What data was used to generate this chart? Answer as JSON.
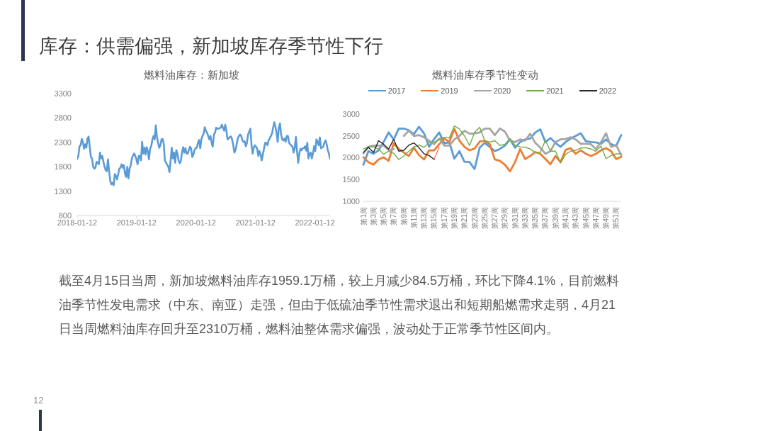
{
  "chart_data": [
    {
      "type": "other",
      "title": "库存：供需偏强，新加坡库存季节性下行",
      "annotations": [
        "截至4月15日当周，新加坡燃料油库存1959.1万桶，较上月减少84.5万桶，环比下降4.1%，目前燃料油季节性发电需求（中东、南亚）走强，但由于低硫油季节性需求退出和短期船燃需求走弱，4月21日当周燃料油库存回升至2310万桶，燃料油整体需求偏强，波动处于正常季节性区间内。",
        "12"
      ]
    },
    {
      "type": "line",
      "title": "燃料油库存：新加坡",
      "color": "#5b9bd5",
      "x": [
        "2018-01-12",
        "2018-01-19",
        "2018-01-26",
        "2018-02-02",
        "2018-02-09",
        "2018-02-16",
        "2018-02-23",
        "2018-03-02",
        "2018-03-09",
        "2018-03-16",
        "2018-03-23",
        "2018-03-30",
        "2018-04-06",
        "2018-04-13",
        "2018-04-20",
        "2018-04-27",
        "2018-05-04",
        "2018-05-11",
        "2018-05-18",
        "2018-05-25",
        "2018-06-01",
        "2018-06-08",
        "2018-06-15",
        "2018-06-22",
        "2018-06-29",
        "2018-07-06",
        "2018-07-13",
        "2018-07-20",
        "2018-07-27",
        "2018-08-03",
        "2018-08-10",
        "2018-08-17",
        "2018-08-24",
        "2018-08-31",
        "2018-09-07",
        "2018-09-14",
        "2018-09-28",
        "2018-10-05",
        "2018-10-12",
        "2018-10-19",
        "2018-10-26",
        "2018-11-02",
        "2018-11-09",
        "2018-11-16",
        "2018-11-23",
        "2018-11-30",
        "2018-12-07",
        "2018-12-14",
        "2018-12-21",
        "2018-12-28",
        "2019-01-04",
        "2019-01-11",
        "2019-01-18",
        "2019-01-25",
        "2019-02-01",
        "2019-02-08",
        "2019-02-15",
        "2019-02-22",
        "2019-03-01",
        "2019-03-08",
        "2019-03-15",
        "2019-03-22",
        "2019-03-29",
        "2019-04-05",
        "2019-04-12",
        "2019-04-19",
        "2019-04-26",
        "2019-05-03",
        "2019-05-10",
        "2019-05-17",
        "2019-05-24",
        "2019-05-31",
        "2019-06-07",
        "2019-06-14",
        "2019-06-21",
        "2019-06-28",
        "2019-07-05",
        "2019-07-12",
        "2019-07-26",
        "2019-08-02",
        "2019-08-09",
        "2019-08-16",
        "2019-08-23",
        "2019-08-30",
        "2019-09-06",
        "2019-09-13",
        "2019-09-20",
        "2019-09-27",
        "2019-10-04",
        "2019-10-11",
        "2019-10-18",
        "2019-10-25",
        "2019-11-01",
        "2019-11-08",
        "2019-11-15",
        "2019-11-22",
        "2019-11-29",
        "2019-12-06",
        "2019-12-13",
        "2019-12-20",
        "2019-12-27",
        "2020-01-03",
        "2020-01-10",
        "2020-01-17",
        "2020-01-24",
        "2020-01-31",
        "2020-02-07",
        "2020-02-14",
        "2020-02-21",
        "2020-02-28",
        "2020-03-06",
        "2020-03-13",
        "2020-03-20",
        "2020-03-27",
        "2020-04-03",
        "2020-04-10",
        "2020-04-17",
        "2020-04-24",
        "2020-05-01",
        "2020-05-08",
        "2020-05-15",
        "2020-05-22",
        "2020-05-29",
        "2020-06-12",
        "2020-06-19",
        "2020-06-26",
        "2020-07-03",
        "2020-07-10",
        "2020-07-17",
        "2020-07-24",
        "2020-07-31",
        "2020-08-07",
        "2020-08-14",
        "2020-08-21",
        "2020-08-28",
        "2020-09-04",
        "2020-09-11",
        "2020-09-18",
        "2020-09-25",
        "2020-10-02",
        "2020-10-09",
        "2020-10-16",
        "2020-10-23",
        "2020-10-30",
        "2020-11-06",
        "2020-11-13",
        "2020-11-20",
        "2020-11-27",
        "2020-12-11",
        "2020-12-18",
        "2020-12-25",
        "2021-01-01",
        "2021-01-08",
        "2021-01-15",
        "2021-01-22",
        "2021-01-29",
        "2021-02-05",
        "2021-02-12",
        "2021-02-19",
        "2021-02-26",
        "2021-03-05",
        "2021-03-12",
        "2021-03-19",
        "2021-03-26",
        "2021-04-02",
        "2021-04-09",
        "2021-04-16",
        "2021-04-23",
        "2021-04-30",
        "2021-05-07",
        "2021-05-14",
        "2021-05-21",
        "2021-05-28",
        "2021-06-04",
        "2021-06-11",
        "2021-06-18",
        "2021-06-25",
        "2021-07-02",
        "2021-07-09",
        "2021-07-16",
        "2021-07-23",
        "2021-07-30",
        "2021-08-06",
        "2021-08-13",
        "2021-08-27",
        "2021-09-03",
        "2021-09-10",
        "2021-09-17",
        "2021-09-24",
        "2021-10-01",
        "2021-10-08",
        "2021-10-15",
        "2021-10-22",
        "2021-10-29",
        "2021-11-05",
        "2021-11-12",
        "2021-11-19",
        "2021-11-26",
        "2021-12-03",
        "2021-12-10",
        "2021-12-17",
        "2021-12-24",
        "2021-12-31",
        "2022-01-07",
        "2022-01-14",
        "2022-01-21",
        "2022-01-28",
        "2022-02-04",
        "2022-02-11",
        "2022-02-18",
        "2022-03-04",
        "2022-03-11",
        "2022-03-18",
        "2022-03-25",
        "2022-04-01",
        "2022-04-08",
        "2022-04-15"
      ],
      "values": [
        1960,
        2020,
        2220,
        2240,
        2370,
        2310,
        2170,
        2260,
        2190,
        2380,
        2420,
        2210,
        2000,
        1970,
        1800,
        1760,
        1780,
        1900,
        1880,
        1850,
        2090,
        1970,
        2020,
        1900,
        1800,
        1730,
        1710,
        1950,
        1710,
        1510,
        1440,
        1470,
        1420,
        1650,
        1610,
        1540,
        1760,
        1780,
        1850,
        1780,
        1830,
        1650,
        1590,
        1800,
        1560,
        1760,
        1830,
        1970,
        2030,
        2070,
        2020,
        1950,
        1850,
        2020,
        2020,
        1930,
        2310,
        2070,
        2190,
        2050,
        2200,
        2120,
        1950,
        2170,
        2220,
        2360,
        2430,
        2360,
        2650,
        2410,
        2290,
        2190,
        2240,
        2360,
        2370,
        2260,
        1930,
        1880,
        1800,
        1690,
        1930,
        2190,
        1970,
        2090,
        1880,
        2140,
        2070,
        1930,
        1870,
        1920,
        2090,
        2200,
        2090,
        2180,
        2070,
        2070,
        2140,
        2210,
        2170,
        2000,
        2050,
        2140,
        2180,
        2190,
        2290,
        2350,
        2180,
        2360,
        2430,
        2480,
        2610,
        2530,
        2500,
        2430,
        2360,
        2430,
        2290,
        2210,
        2460,
        2500,
        2600,
        2580,
        2580,
        2600,
        2660,
        2600,
        2540,
        2660,
        2530,
        2360,
        2380,
        2410,
        2420,
        2360,
        2240,
        2090,
        2140,
        2260,
        2380,
        2430,
        2460,
        2430,
        2340,
        2310,
        2320,
        2220,
        2290,
        2460,
        2580,
        2260,
        2070,
        2190,
        2240,
        2210,
        2170,
        2020,
        2120,
        2050,
        1930,
        2050,
        2170,
        2290,
        2290,
        2240,
        2340,
        2380,
        2430,
        2480,
        2600,
        2710,
        2620,
        2500,
        2310,
        2600,
        2690,
        2460,
        2360,
        2340,
        2380,
        2310,
        2430,
        2430,
        2290,
        2260,
        2210,
        2090,
        2190,
        2410,
        2120,
        1880,
        2070,
        2170,
        2140,
        2180,
        2180,
        2220,
        2130,
        2290,
        1970,
        2070,
        2090,
        1970,
        2070,
        2220,
        2120,
        2360,
        2310,
        2240,
        2400,
        2180,
        2210,
        2290,
        2340,
        2260,
        2140,
        2070,
        1960
      ],
      "xlim": [
        "2018-01-12",
        "2022-04-15"
      ],
      "xticks": [
        "2018-01-12",
        "2019-01-12",
        "2020-01-12",
        "2021-01-12",
        "2022-01-12"
      ],
      "ylim": [
        800,
        3300
      ],
      "yticks": [
        800,
        1300,
        1800,
        2300,
        2800,
        3300
      ]
    },
    {
      "type": "line",
      "title": "燃料油库存季节性变动",
      "legend": "top",
      "categories": [
        "第1周",
        null,
        "第3周",
        null,
        "第5周",
        null,
        "第7周",
        null,
        "第9周",
        null,
        "第11周",
        null,
        "第13周",
        null,
        "第15周",
        null,
        "第17周",
        null,
        "第19周",
        null,
        "第21周",
        null,
        "第23周",
        null,
        "第25周",
        null,
        "第27周",
        null,
        "第29周",
        null,
        "第31周",
        null,
        "第33周",
        null,
        "第35周",
        null,
        "第37周",
        null,
        "第39周",
        null,
        "第41周",
        null,
        "第43周",
        null,
        "第45周",
        null,
        "第47周",
        null,
        "第49周",
        null,
        "第51周",
        null
      ],
      "series": [
        {
          "name": "2017",
          "color": "#5b9bd5",
          "values": [
            1840,
            2150,
            2090,
            2170,
            2360,
            2580,
            2420,
            2670,
            2670,
            2630,
            2540,
            2710,
            2560,
            2250,
            2430,
            2580,
            2330,
            2350,
            1980,
            2150,
            1910,
            1900,
            1740,
            2230,
            2340,
            2250,
            2150,
            2200,
            2280,
            2420,
            2230,
            2360,
            2420,
            2440,
            2580,
            2650,
            2360,
            2450,
            2340,
            2250,
            2360,
            2440,
            2500,
            2560,
            2380,
            2360,
            2350,
            2320,
            2420,
            2310,
            2270,
            2520
          ]
        },
        {
          "name": "2019",
          "color": "#ed7d31",
          "values": [
            2010,
            1900,
            1840,
            1960,
            2010,
            1930,
            2330,
            2200,
            2120,
            2040,
            2230,
            2060,
            1960,
            2170,
            2170,
            2310,
            2440,
            2360,
            2660,
            2390,
            2250,
            2170,
            2210,
            2370,
            2390,
            2310,
            1960,
            1930,
            1840,
            1690,
            1900,
            2200,
            1970,
            2040,
            2130,
            2090,
            1970,
            1850,
            2040,
            1900,
            2180,
            2220,
            2090,
            2170,
            2090,
            2040,
            2090,
            2170,
            2220,
            2150,
            1970,
            2020
          ]
        },
        {
          "name": "2020",
          "color": "#a5a5a5",
          "values": [
            2100,
            2250,
            2280,
            2280,
            2280,
            2170,
            2200,
            null,
            2500,
            2620,
            2500,
            2520,
            2470,
            2390,
            2310,
            2440,
            2280,
            2280,
            2420,
            2500,
            2620,
            2550,
            2560,
            2580,
            2670,
            2670,
            2520,
            2670,
            2600,
            2390,
            2360,
            2420,
            2390,
            2550,
            2340,
            2230,
            2090,
            2150,
            2360,
            2420,
            2430,
            2470,
            2420,
            2320,
            2320,
            2310,
            2200,
            2360,
            2560,
            2250,
            2290,
            2060
          ]
        },
        {
          "name": "2021",
          "color": "#70ad47",
          "values": [
            2200,
            2250,
            2250,
            2200,
            2080,
            2150,
            2100,
            1960,
            2040,
            2150,
            2250,
            2290,
            2240,
            2340,
            2360,
            2420,
            2470,
            2450,
            2730,
            2660,
            2500,
            2280,
            2580,
            2700,
            2390,
            2360,
            2390,
            2280,
            2310,
            2440,
            2280,
            2250,
            2240,
            2200,
            2120,
            2120,
            2400,
            2150,
            2150,
            1880,
            2080,
            2150,
            2170,
            2220,
            2230,
            2200,
            2150,
            2270,
            1980,
            2050,
            2090,
            2090
          ]
        },
        {
          "name": "2022",
          "color": "#262626",
          "values": [
            2120,
            2240,
            2120,
            2390,
            2310,
            2200,
            2420,
            2150,
            2170,
            2290,
            2340,
            2230,
            2090,
            2050,
            1960,
            null,
            null,
            null,
            null,
            null,
            null,
            null,
            null,
            null,
            null,
            null,
            null,
            null,
            null,
            null,
            null,
            null,
            null,
            null,
            null,
            null,
            null,
            null,
            null,
            null,
            null,
            null,
            null,
            null,
            null,
            null,
            null,
            null,
            null,
            null,
            null,
            null
          ]
        },
        {
          "color": "#ff3b3b",
          "values": [
            null,
            null,
            null,
            null,
            null,
            null,
            null,
            null,
            null,
            null,
            null,
            null,
            null,
            null,
            1960,
            2250,
            null,
            null,
            null,
            null,
            null,
            null,
            null,
            null,
            null,
            null,
            null,
            null,
            null,
            null,
            null,
            null,
            null,
            null,
            null,
            null,
            null,
            null,
            null,
            null,
            null,
            null,
            null,
            null,
            null,
            null,
            null,
            null,
            null,
            null,
            null,
            null
          ]
        }
      ],
      "ylim": [
        1000,
        3000
      ],
      "yticks": [
        1000,
        1500,
        2000,
        2500,
        3000
      ]
    }
  ]
}
